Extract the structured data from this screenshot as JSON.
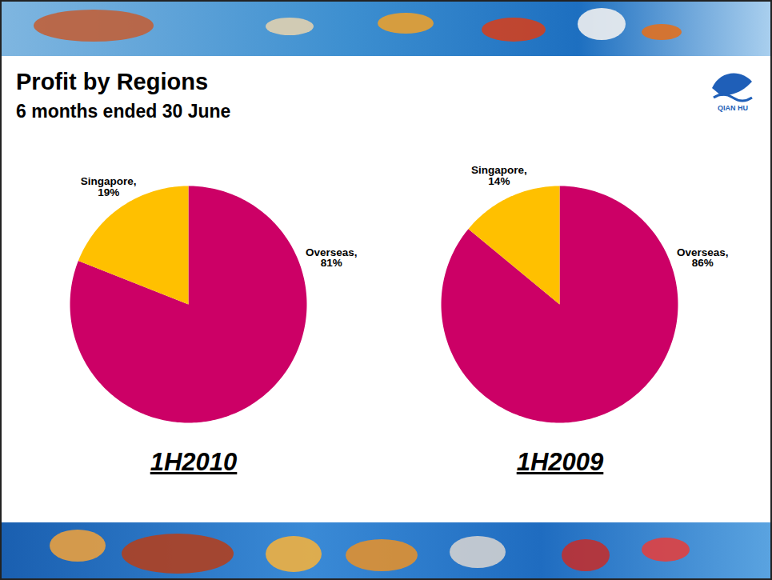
{
  "title": "Profit by Regions",
  "subtitle": "6 months ended 30 June",
  "logo": "QIAN HU",
  "chart_data": [
    {
      "type": "pie",
      "title": "1H2010",
      "categories": [
        "Overseas,",
        "Singapore,"
      ],
      "values": [
        81,
        19
      ],
      "value_labels": [
        "81%",
        "19%"
      ],
      "colors": [
        "#CC0066",
        "#FFC000"
      ],
      "data_labels": true
    },
    {
      "type": "pie",
      "title": "1H2009",
      "categories": [
        "Overseas,",
        "Singapore,"
      ],
      "values": [
        86,
        14
      ],
      "value_labels": [
        "86%",
        "14%"
      ],
      "colors": [
        "#CC0066",
        "#FFC000"
      ],
      "data_labels": true
    }
  ]
}
